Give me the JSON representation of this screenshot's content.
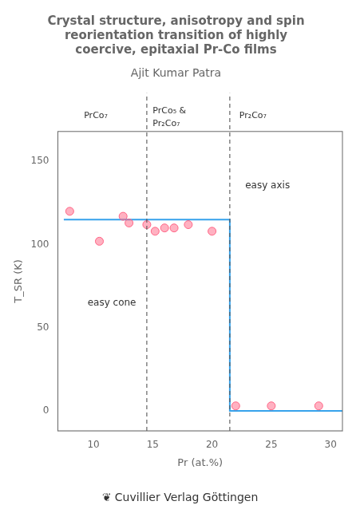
{
  "chart_data": {
    "type": "scatter",
    "title": [
      "Crystal structure, anisotropy and spin",
      "reorientation transition of highly",
      "coercive, epitaxial Pr-Co films"
    ],
    "subtitle": "Ajit Kumar Patra",
    "footer": "❦ Cuvillier Verlag Göttingen",
    "xlabel": "Pr (at.%)",
    "ylabel": "T_SR (K)",
    "xlim": [
      7,
      31
    ],
    "ylim": [
      -12,
      168
    ],
    "xticks": [
      10,
      15,
      20,
      25,
      30
    ],
    "yticks": [
      0,
      50,
      100,
      150
    ],
    "grid": false,
    "series": [
      {
        "type": "line",
        "x": [
          7.5,
          21.5,
          21.5,
          31
        ],
        "values": [
          115,
          115,
          0,
          0
        ]
      },
      {
        "type": "scatter",
        "marker": "circle",
        "x": [
          8.0,
          10.5,
          12.5,
          13.0,
          14.5,
          15.2,
          16.0,
          16.8,
          18.0,
          20.0,
          22.0,
          25.0,
          29.0
        ],
        "values": [
          120,
          102,
          117,
          113,
          112,
          108,
          110,
          110,
          112,
          108,
          3,
          3,
          3
        ]
      }
    ],
    "vertical_lines": {
      "x": [
        14.5,
        21.5
      ],
      "line_style": "dashed"
    },
    "annotations": [
      {
        "text": "easy axis",
        "x": 22.8,
        "y": 138
      },
      {
        "text": "easy cone",
        "x": 9.5,
        "y": 65
      }
    ],
    "region_labels": [
      {
        "text": [
          "PrCo₇"
        ],
        "x": 9.2
      },
      {
        "text": [
          "PrCo₅ &",
          "Pr₂Co₇"
        ],
        "x": 15.0
      },
      {
        "text": [
          "Pr₂Co₇"
        ],
        "x": 22.3
      }
    ]
  }
}
